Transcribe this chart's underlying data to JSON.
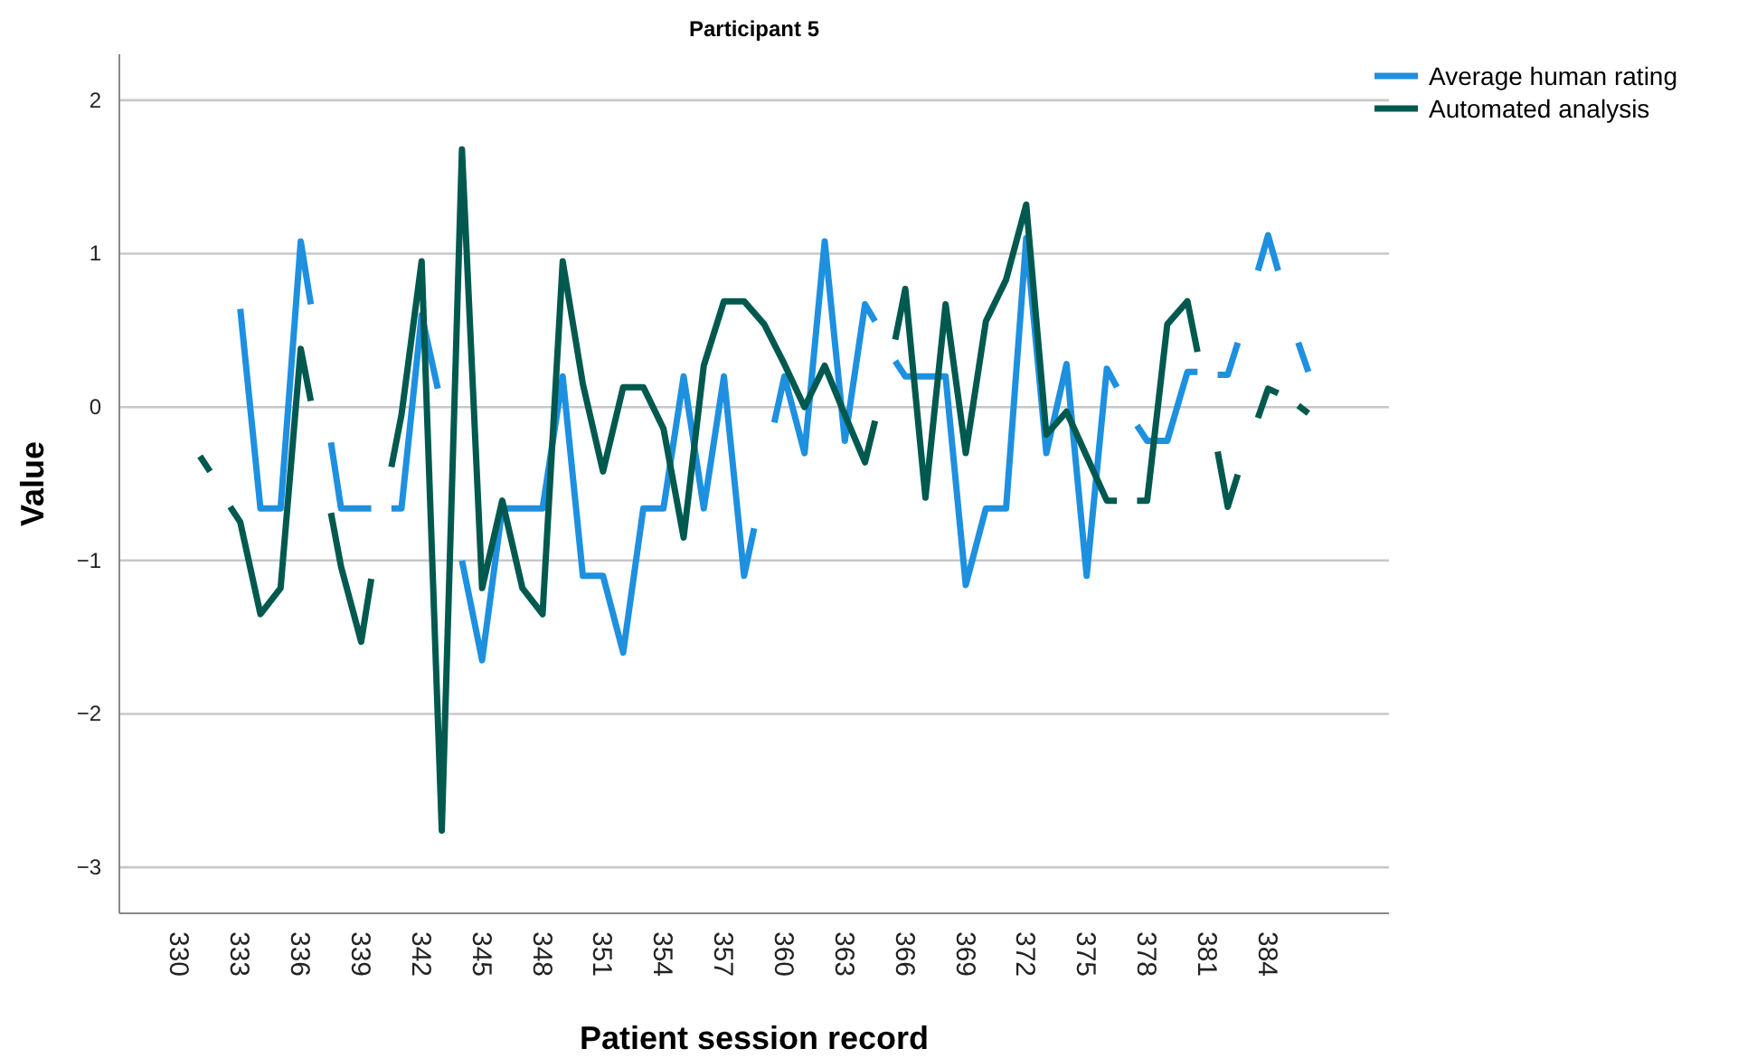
{
  "chart_data": {
    "type": "line",
    "title": "Participant 5",
    "xlabel": "Patient session record",
    "ylabel": "Value",
    "xlim": [
      327,
      390
    ],
    "xticks": [
      330,
      333,
      336,
      339,
      342,
      345,
      348,
      351,
      354,
      357,
      360,
      363,
      366,
      369,
      372,
      375,
      378,
      381,
      384
    ],
    "ylim": [
      -3.3,
      2.3
    ],
    "yticks": [
      -3,
      -2,
      -1,
      0,
      1,
      2
    ],
    "grid": "y",
    "legend": "top right",
    "marker": "none",
    "line_style": "solid",
    "series": [
      {
        "name": "Average human rating",
        "color": "#1e90e0",
        "x": [
          333,
          334,
          335,
          336,
          336.5,
          337,
          337.5,
          338,
          339,
          339.5,
          340,
          340.5,
          341,
          342,
          342.8,
          343.5,
          344,
          345,
          346,
          347,
          348,
          349,
          350,
          351,
          352,
          353,
          354,
          355,
          356,
          357,
          358,
          358.5,
          359,
          359.5,
          360,
          361,
          362,
          363,
          364,
          364.5,
          365,
          365.5,
          366,
          367,
          368,
          369,
          370,
          371,
          372,
          373,
          374,
          375,
          376,
          376.5,
          377,
          377.5,
          378,
          379,
          380,
          380.5,
          381,
          381.5,
          382,
          382.5,
          383,
          383.5,
          384,
          384.5,
          385,
          385.5,
          386
        ],
        "values": [
          0.64,
          -0.66,
          -0.66,
          1.08,
          0.67,
          null,
          -0.23,
          -0.66,
          -0.66,
          -0.66,
          null,
          -0.66,
          -0.66,
          0.6,
          0.12,
          null,
          -1.0,
          -1.65,
          -0.66,
          -0.66,
          -0.66,
          0.2,
          -1.1,
          -1.1,
          -1.6,
          -0.66,
          -0.66,
          0.2,
          -0.66,
          0.2,
          -1.1,
          -0.79,
          null,
          -0.1,
          0.2,
          -0.3,
          1.08,
          -0.22,
          0.67,
          0.56,
          null,
          0.3,
          0.2,
          0.2,
          0.2,
          -1.16,
          -0.66,
          -0.66,
          1.1,
          -0.3,
          0.28,
          -1.1,
          0.25,
          0.13,
          null,
          -0.12,
          -0.22,
          -0.22,
          0.23,
          0.23,
          null,
          0.21,
          0.21,
          0.42,
          null,
          0.89,
          1.12,
          0.89,
          null,
          0.42,
          0.23
        ]
      },
      {
        "name": "Automated analysis",
        "color": "#00594f",
        "x": [
          331,
          331.5,
          332,
          332.5,
          333,
          334,
          335,
          336,
          336.5,
          337,
          337.5,
          338,
          339,
          339.5,
          340,
          340.5,
          341,
          342,
          343,
          344,
          345,
          346,
          347,
          348,
          349,
          350,
          351,
          352,
          353,
          354,
          355,
          356,
          357,
          358,
          359,
          360,
          361,
          362,
          363,
          364,
          364.5,
          365,
          365.5,
          366,
          367,
          368,
          369,
          370,
          371,
          372,
          373,
          374,
          375,
          376,
          376.5,
          377,
          377.5,
          378,
          379,
          380,
          380.5,
          381,
          381.5,
          382,
          382.5,
          383,
          383.5,
          384,
          384.5,
          385,
          385.5,
          386
        ],
        "values": [
          -0.32,
          -0.42,
          null,
          -0.65,
          -0.75,
          -1.35,
          -1.18,
          0.38,
          0.04,
          null,
          -0.69,
          -1.04,
          -1.53,
          -1.12,
          null,
          -0.39,
          -0.05,
          0.95,
          -2.76,
          1.68,
          -1.18,
          -0.61,
          -1.18,
          -1.35,
          0.95,
          0.15,
          -0.42,
          0.13,
          0.13,
          -0.14,
          -0.85,
          0.27,
          0.69,
          0.69,
          0.54,
          0.28,
          0,
          0.27,
          -0.05,
          -0.36,
          -0.09,
          null,
          0.44,
          0.77,
          -0.59,
          0.67,
          -0.3,
          0.56,
          0.83,
          1.32,
          -0.18,
          -0.03,
          -0.32,
          -0.61,
          -0.61,
          null,
          -0.61,
          -0.61,
          0.54,
          0.69,
          0.36,
          null,
          -0.29,
          -0.65,
          -0.44,
          null,
          -0.07,
          0.12,
          0.09,
          null,
          0.01,
          -0.04
        ]
      }
    ]
  }
}
